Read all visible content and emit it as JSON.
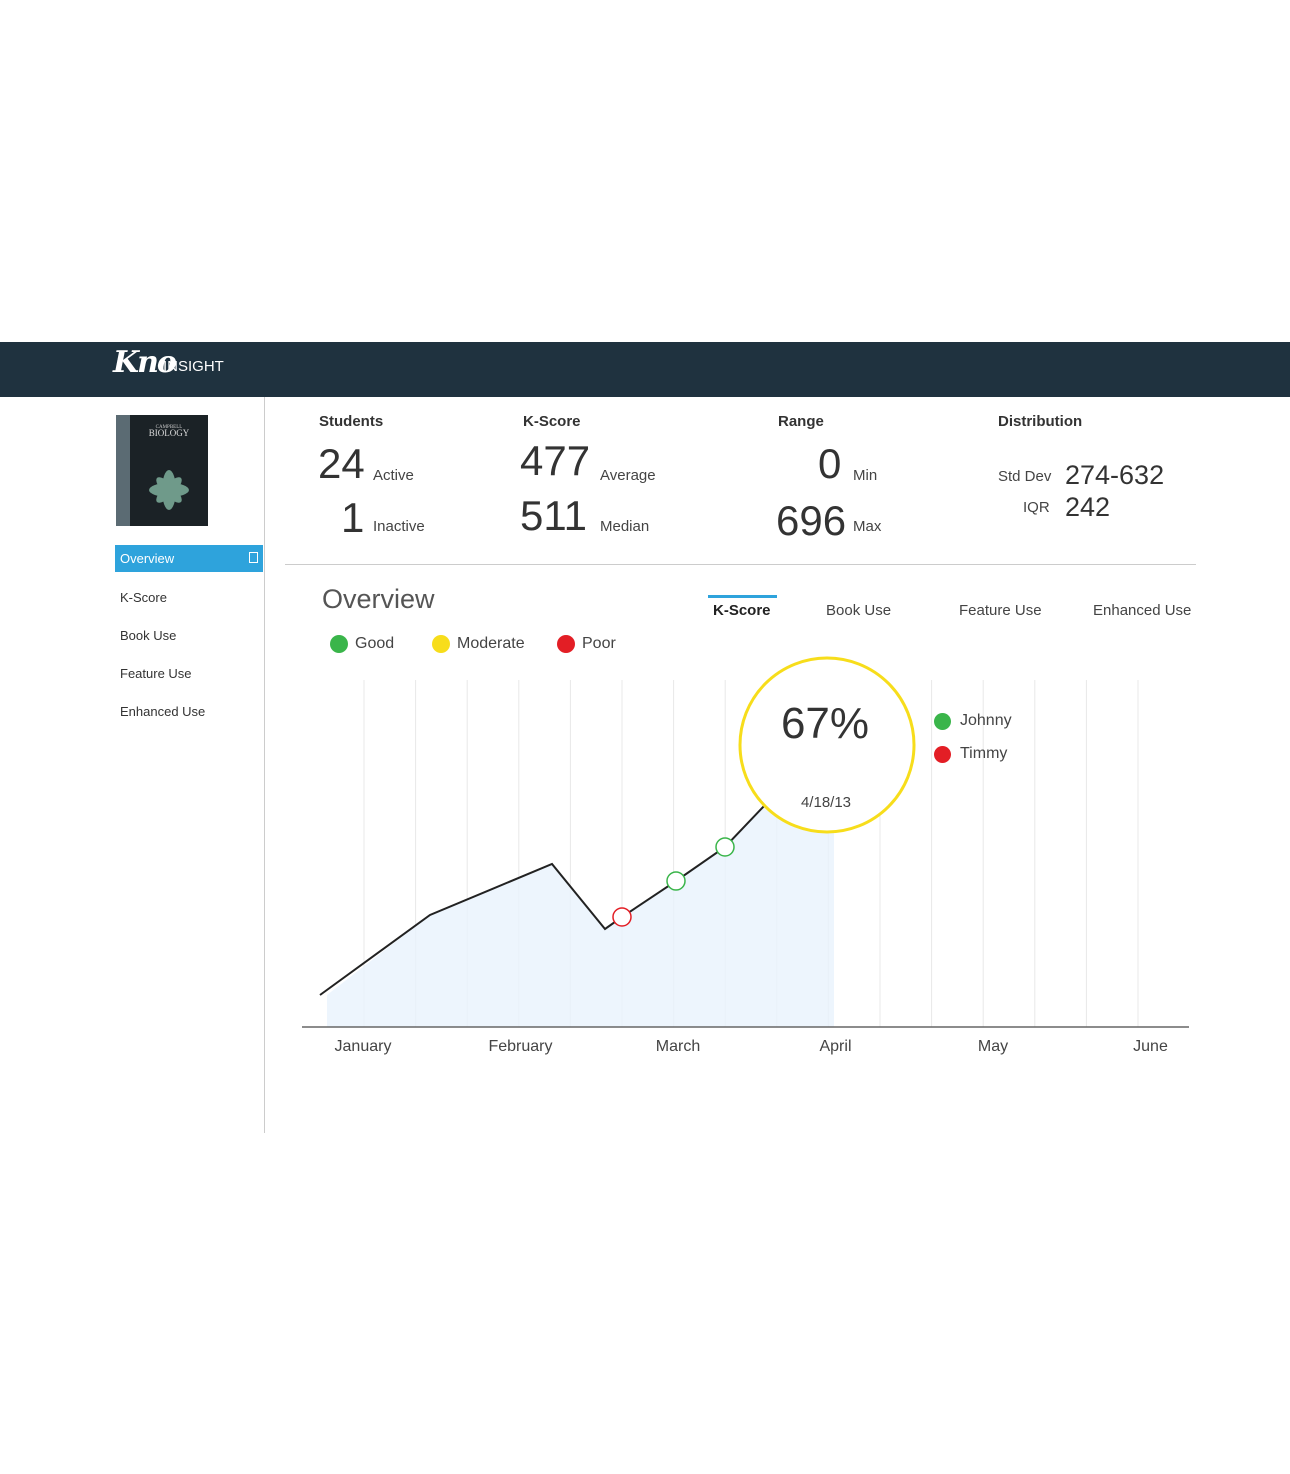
{
  "header": {
    "logo": "Kno",
    "product": "INSIGHT"
  },
  "book": {
    "author": "CAMPBELL",
    "title": "BIOLOGY"
  },
  "sidebar": {
    "items": [
      "Overview",
      "K-Score",
      "Book Use",
      "Feature Use",
      "Enhanced Use"
    ],
    "active": 0
  },
  "stats": {
    "students": {
      "label": "Students",
      "active": 24,
      "active_label": "Active",
      "inactive": 1,
      "inactive_label": "Inactive"
    },
    "kscore": {
      "label": "K-Score",
      "average": 477,
      "average_label": "Average",
      "median": 511,
      "median_label": "Median"
    },
    "range": {
      "label": "Range",
      "min": 0,
      "min_label": "Min",
      "max": 696,
      "max_label": "Max"
    },
    "distribution": {
      "label": "Distribution",
      "std_dev_label": "Std Dev",
      "std_dev": "274-632",
      "iqr_label": "IQR",
      "iqr": 242
    }
  },
  "overview": {
    "title": "Overview",
    "tabs": [
      "K-Score",
      "Book Use",
      "Feature Use",
      "Enhanced Use"
    ],
    "active_tab": 0,
    "legend": [
      {
        "label": "Good",
        "color": "#3ab54a"
      },
      {
        "label": "Moderate",
        "color": "#f7dd1b"
      },
      {
        "label": "Poor",
        "color": "#e31e25"
      }
    ],
    "months": [
      "January",
      "February",
      "March",
      "April",
      "May",
      "June"
    ],
    "tooltip": {
      "value": "67%",
      "date": "4/18/13"
    },
    "students": [
      {
        "name": "Johnny",
        "color": "#3ab54a"
      },
      {
        "name": "Timmy",
        "color": "#e31e25"
      }
    ]
  }
}
